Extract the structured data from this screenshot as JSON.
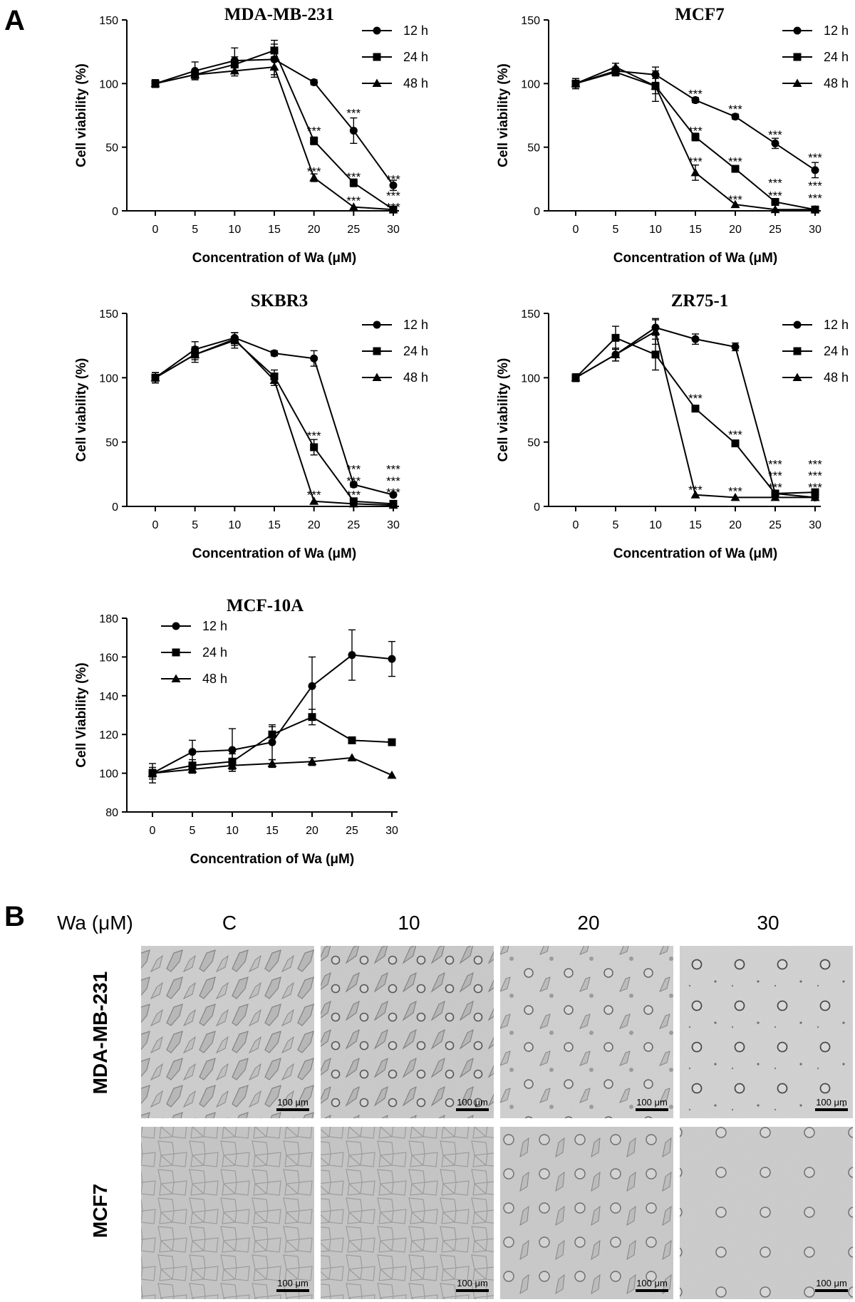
{
  "panels": {
    "a": "A",
    "b": "B"
  },
  "chart_data": [
    {
      "type": "line",
      "title": "MDA-MB-231",
      "xlabel": "Concentration of Wa (μM)",
      "ylabel": "Cell viability (%)",
      "x": [
        0,
        5,
        10,
        15,
        20,
        25,
        30
      ],
      "ylim": [
        0,
        150
      ],
      "yticks": [
        0,
        50,
        100,
        150
      ],
      "legend": "top-right",
      "series": [
        {
          "name": "12 h",
          "marker": "circle",
          "values": [
            100,
            110,
            118,
            119,
            101,
            63,
            20
          ],
          "err": [
            3,
            7,
            10,
            12,
            2,
            10,
            4
          ]
        },
        {
          "name": "24 h",
          "marker": "square",
          "values": [
            100,
            107,
            115,
            126,
            55,
            22,
            1
          ],
          "err": [
            3,
            4,
            6,
            8,
            3,
            3,
            1
          ]
        },
        {
          "name": "48 h",
          "marker": "triangle",
          "values": [
            100,
            107,
            110,
            113,
            26,
            3,
            1
          ],
          "err": [
            3,
            3,
            4,
            8,
            3,
            1,
            1
          ]
        }
      ],
      "annotations": [
        {
          "x": 20,
          "y": 63,
          "text": "***"
        },
        {
          "x": 20,
          "y": 31,
          "text": "***"
        },
        {
          "x": 25,
          "y": 77,
          "text": "***"
        },
        {
          "x": 25,
          "y": 27,
          "text": "***"
        },
        {
          "x": 25,
          "y": 8,
          "text": "***"
        },
        {
          "x": 30,
          "y": 25,
          "text": "***"
        },
        {
          "x": 30,
          "y": 12,
          "text": "***"
        },
        {
          "x": 30,
          "y": 3,
          "text": "***"
        }
      ]
    },
    {
      "type": "line",
      "title": "MCF7",
      "xlabel": "Concentration of Wa (μM)",
      "ylabel": "Cell viability (%)",
      "x": [
        0,
        5,
        10,
        15,
        20,
        25,
        30
      ],
      "ylim": [
        0,
        150
      ],
      "yticks": [
        0,
        50,
        100,
        150
      ],
      "legend": "top-right",
      "series": [
        {
          "name": "12 h",
          "marker": "circle",
          "values": [
            100,
            110,
            107,
            87,
            74,
            53,
            32
          ],
          "err": [
            4,
            3,
            6,
            2,
            2,
            4,
            6
          ]
        },
        {
          "name": "24 h",
          "marker": "square",
          "values": [
            100,
            109,
            98,
            58,
            33,
            7,
            1
          ],
          "err": [
            4,
            3,
            6,
            3,
            2,
            2,
            1
          ]
        },
        {
          "name": "48 h",
          "marker": "triangle",
          "values": [
            100,
            113,
            98,
            30,
            5,
            1,
            1
          ],
          "err": [
            4,
            3,
            12,
            6,
            1,
            1,
            1
          ]
        }
      ],
      "annotations": [
        {
          "x": 15,
          "y": 92,
          "text": "***"
        },
        {
          "x": 15,
          "y": 63,
          "text": "***"
        },
        {
          "x": 15,
          "y": 39,
          "text": "***"
        },
        {
          "x": 20,
          "y": 80,
          "text": "***"
        },
        {
          "x": 20,
          "y": 39,
          "text": "***"
        },
        {
          "x": 20,
          "y": 9,
          "text": "***"
        },
        {
          "x": 25,
          "y": 60,
          "text": "***"
        },
        {
          "x": 25,
          "y": 22,
          "text": "***"
        },
        {
          "x": 25,
          "y": 12,
          "text": "***"
        },
        {
          "x": 30,
          "y": 42,
          "text": "***"
        },
        {
          "x": 30,
          "y": 20,
          "text": "***"
        },
        {
          "x": 30,
          "y": 10,
          "text": "***"
        }
      ]
    },
    {
      "type": "line",
      "title": "SKBR3",
      "xlabel": "Concentration of Wa (μM)",
      "ylabel": "Cell viability (%)",
      "x": [
        0,
        5,
        10,
        15,
        20,
        25,
        30
      ],
      "ylim": [
        0,
        150
      ],
      "yticks": [
        0,
        50,
        100,
        150
      ],
      "legend": "top-right",
      "series": [
        {
          "name": "12 h",
          "marker": "circle",
          "values": [
            100,
            122,
            131,
            119,
            115,
            17,
            9
          ],
          "err": [
            4,
            6,
            4,
            2,
            6,
            2,
            1
          ]
        },
        {
          "name": "24 h",
          "marker": "square",
          "values": [
            100,
            118,
            129,
            101,
            46,
            4,
            2
          ],
          "err": [
            4,
            6,
            6,
            5,
            6,
            1,
            1
          ]
        },
        {
          "name": "48 h",
          "marker": "triangle",
          "values": [
            100,
            118,
            130,
            98,
            4,
            2,
            1
          ],
          "err": [
            4,
            4,
            5,
            4,
            1,
            1,
            1
          ]
        }
      ],
      "annotations": [
        {
          "x": 20,
          "y": 55,
          "text": "***"
        },
        {
          "x": 20,
          "y": 9,
          "text": "***"
        },
        {
          "x": 25,
          "y": 29,
          "text": "***"
        },
        {
          "x": 25,
          "y": 20,
          "text": "***"
        },
        {
          "x": 25,
          "y": 9,
          "text": "***"
        },
        {
          "x": 30,
          "y": 29,
          "text": "***"
        },
        {
          "x": 30,
          "y": 20,
          "text": "***"
        },
        {
          "x": 30,
          "y": 11,
          "text": "***"
        }
      ]
    },
    {
      "type": "line",
      "title": "ZR75-1",
      "xlabel": "Concentration of Wa (μM)",
      "ylabel": "Cell viability (%)",
      "x": [
        0,
        5,
        10,
        15,
        20,
        25,
        30
      ],
      "ylim": [
        0,
        150
      ],
      "yticks": [
        0,
        50,
        100,
        150
      ],
      "legend": "top-right",
      "series": [
        {
          "name": "12 h",
          "marker": "circle",
          "values": [
            100,
            118,
            139,
            130,
            124,
            10,
            7
          ],
          "err": [
            3,
            5,
            6,
            4,
            3,
            2,
            1
          ]
        },
        {
          "name": "24 h",
          "marker": "square",
          "values": [
            100,
            131,
            118,
            76,
            49,
            10,
            11
          ],
          "err": [
            3,
            9,
            12,
            2,
            2,
            2,
            1
          ]
        },
        {
          "name": "48 h",
          "marker": "triangle",
          "values": [
            100,
            118,
            136,
            9,
            7,
            7,
            7
          ],
          "err": [
            3,
            5,
            10,
            1,
            1,
            1,
            1
          ]
        }
      ],
      "annotations": [
        {
          "x": 15,
          "y": 84,
          "text": "***"
        },
        {
          "x": 15,
          "y": 13,
          "text": "***"
        },
        {
          "x": 20,
          "y": 56,
          "text": "***"
        },
        {
          "x": 20,
          "y": 12,
          "text": "***"
        },
        {
          "x": 25,
          "y": 33,
          "text": "***"
        },
        {
          "x": 25,
          "y": 24,
          "text": "***"
        },
        {
          "x": 25,
          "y": 15,
          "text": "***"
        },
        {
          "x": 30,
          "y": 33,
          "text": "***"
        },
        {
          "x": 30,
          "y": 24,
          "text": "***"
        },
        {
          "x": 30,
          "y": 15,
          "text": "***"
        }
      ]
    },
    {
      "type": "line",
      "title": "MCF-10A",
      "xlabel": "Concentration of Wa (μM)",
      "ylabel": "Cell Viability (%)",
      "x": [
        0,
        5,
        10,
        15,
        20,
        25,
        30
      ],
      "ylim": [
        80,
        180
      ],
      "yticks": [
        80,
        100,
        120,
        140,
        160,
        180
      ],
      "legend": "top-left",
      "series": [
        {
          "name": "12 h",
          "marker": "circle",
          "values": [
            100,
            111,
            112,
            116,
            145,
            161,
            159
          ],
          "err": [
            5,
            6,
            11,
            9,
            15,
            13,
            9
          ]
        },
        {
          "name": "24 h",
          "marker": "square",
          "values": [
            100,
            104,
            106,
            120,
            129,
            117,
            116
          ],
          "err": [
            3,
            3,
            4,
            4,
            4,
            1,
            1
          ]
        },
        {
          "name": "48 h",
          "marker": "triangle",
          "values": [
            100,
            102,
            104,
            105,
            106,
            108,
            99
          ],
          "err": [
            2,
            2,
            3,
            2,
            2,
            1,
            1
          ]
        }
      ],
      "annotations": []
    }
  ],
  "panel_b": {
    "header_label": "Wa (μM)",
    "columns": [
      "C",
      "10",
      "20",
      "30"
    ],
    "rows": [
      "MDA-MB-231",
      "MCF7"
    ],
    "scale_bar": "100 μm"
  }
}
